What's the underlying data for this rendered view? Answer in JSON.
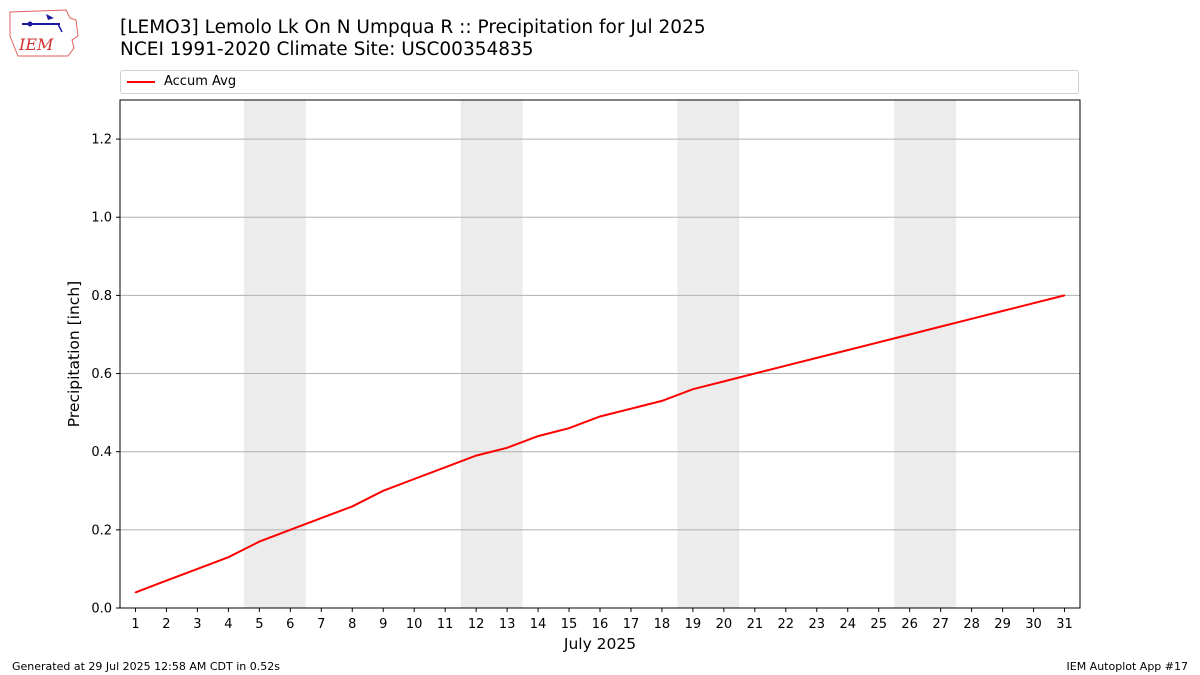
{
  "title_line1": "[LEMO3] Lemolo Lk On N Umpqua R :: Precipitation for Jul 2025",
  "title_line2": "NCEI 1991-2020 Climate Site: USC00354835",
  "logo_text": "IEM",
  "footer_left": "Generated at 29 Jul 2025 12:58 AM CDT in 0.52s",
  "footer_right": "IEM Autoplot App #17",
  "chart_data": {
    "type": "line",
    "xlabel": "July 2025",
    "ylabel": "Precipitation [inch]",
    "xlim": [
      0.5,
      31.5
    ],
    "ylim": [
      0.0,
      1.3
    ],
    "y_ticks": [
      "0.0",
      "0.2",
      "0.4",
      "0.6",
      "0.8",
      "1.0",
      "1.2"
    ],
    "x_ticks": [
      "1",
      "2",
      "3",
      "4",
      "5",
      "6",
      "7",
      "8",
      "9",
      "10",
      "11",
      "12",
      "13",
      "14",
      "15",
      "16",
      "17",
      "18",
      "19",
      "20",
      "21",
      "22",
      "23",
      "24",
      "25",
      "26",
      "27",
      "28",
      "29",
      "30",
      "31"
    ],
    "grid": "horizontal",
    "legend_position": "top",
    "weekend_shading": [
      [
        5,
        6
      ],
      [
        12,
        13
      ],
      [
        19,
        20
      ],
      [
        26,
        27
      ]
    ],
    "shade_color": "#ececec",
    "series": [
      {
        "name": "Accum Avg",
        "color": "#ff0000",
        "x": [
          1,
          2,
          3,
          4,
          5,
          6,
          7,
          8,
          9,
          10,
          11,
          12,
          13,
          14,
          15,
          16,
          17,
          18,
          19,
          20,
          21,
          22,
          23,
          24,
          25,
          26,
          27,
          28,
          29,
          30,
          31
        ],
        "values": [
          0.04,
          0.07,
          0.1,
          0.13,
          0.17,
          0.2,
          0.23,
          0.26,
          0.3,
          0.33,
          0.36,
          0.39,
          0.41,
          0.44,
          0.46,
          0.49,
          0.51,
          0.53,
          0.56,
          0.58,
          0.6,
          0.62,
          0.64,
          0.66,
          0.68,
          0.7,
          0.72,
          0.74,
          0.76,
          0.78,
          0.8
        ]
      }
    ]
  }
}
